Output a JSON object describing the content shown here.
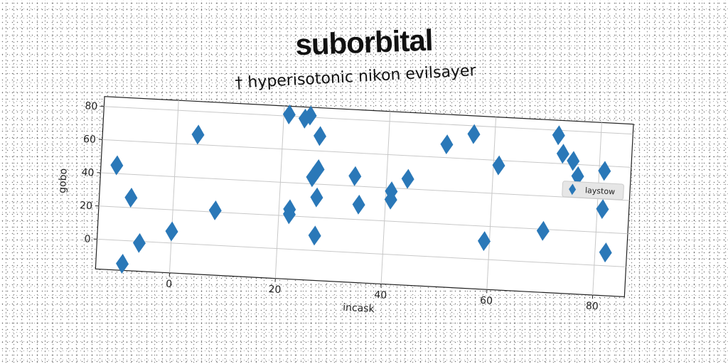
{
  "title": "suborbital",
  "subtitle": "† hyperisotonic nikon evilsayer",
  "chart_data": {
    "type": "scatter",
    "xlabel": "incask",
    "ylabel": "gobo",
    "xlim": [
      -14,
      86
    ],
    "ylim": [
      -18,
      86
    ],
    "xticks": [
      0,
      20,
      40,
      60,
      80
    ],
    "yticks": [
      0,
      20,
      40,
      60,
      80
    ],
    "grid": true,
    "legend": "right",
    "marker": "diamond",
    "color": "#2a78b8",
    "series": [
      {
        "name": "laystow",
        "points": [
          [
            -11,
            45
          ],
          [
            -8,
            26
          ],
          [
            -6,
            -1
          ],
          [
            -9,
            -14
          ],
          [
            0,
            7
          ],
          [
            4,
            66
          ],
          [
            8,
            21
          ],
          [
            21,
            81
          ],
          [
            24,
            79
          ],
          [
            25,
            81
          ],
          [
            22,
            21
          ],
          [
            22,
            24
          ],
          [
            27,
            69
          ],
          [
            26,
            44
          ],
          [
            27,
            49
          ],
          [
            27,
            32
          ],
          [
            27,
            9
          ],
          [
            34,
            46
          ],
          [
            35,
            29
          ],
          [
            41,
            38
          ],
          [
            41,
            33
          ],
          [
            44,
            46
          ],
          [
            51,
            68
          ],
          [
            56,
            75
          ],
          [
            59,
            11
          ],
          [
            61,
            57
          ],
          [
            70,
            19
          ],
          [
            72,
            77
          ],
          [
            73,
            66
          ],
          [
            75,
            62
          ],
          [
            76,
            53
          ],
          [
            81,
            57
          ],
          [
            81,
            34
          ],
          [
            82,
            8
          ]
        ]
      }
    ]
  }
}
